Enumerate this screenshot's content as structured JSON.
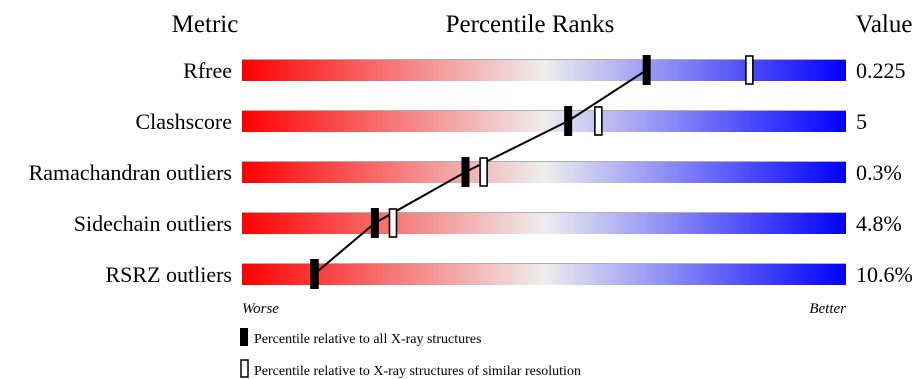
{
  "header": {
    "metric": "Metric",
    "percentile_ranks": "Percentile Ranks",
    "value": "Value"
  },
  "axis": {
    "worse": "Worse",
    "better": "Better"
  },
  "legend": {
    "all_label": "Percentile relative to all X-ray structures",
    "similar_label": "Percentile relative to X-ray structures of similar resolution"
  },
  "chart_data": {
    "type": "percentile-slider",
    "xlim": [
      0,
      100
    ],
    "colors": {
      "worse": "#ff0000",
      "middle": "#eeeeee",
      "better": "#0000ff",
      "marker": "#000000"
    },
    "metrics": [
      {
        "name": "Rfree",
        "value": "0.225",
        "percentile_all": 67,
        "percentile_similar": 84
      },
      {
        "name": "Clashscore",
        "value": "5",
        "percentile_all": 54,
        "percentile_similar": 59
      },
      {
        "name": "Ramachandran outliers",
        "value": "0.3%",
        "percentile_all": 37,
        "percentile_similar": 40
      },
      {
        "name": "Sidechain outliers",
        "value": "4.8%",
        "percentile_all": 22,
        "percentile_similar": 25
      },
      {
        "name": "RSRZ outliers",
        "value": "10.6%",
        "percentile_all": 12,
        "percentile_similar": 12
      }
    ]
  }
}
